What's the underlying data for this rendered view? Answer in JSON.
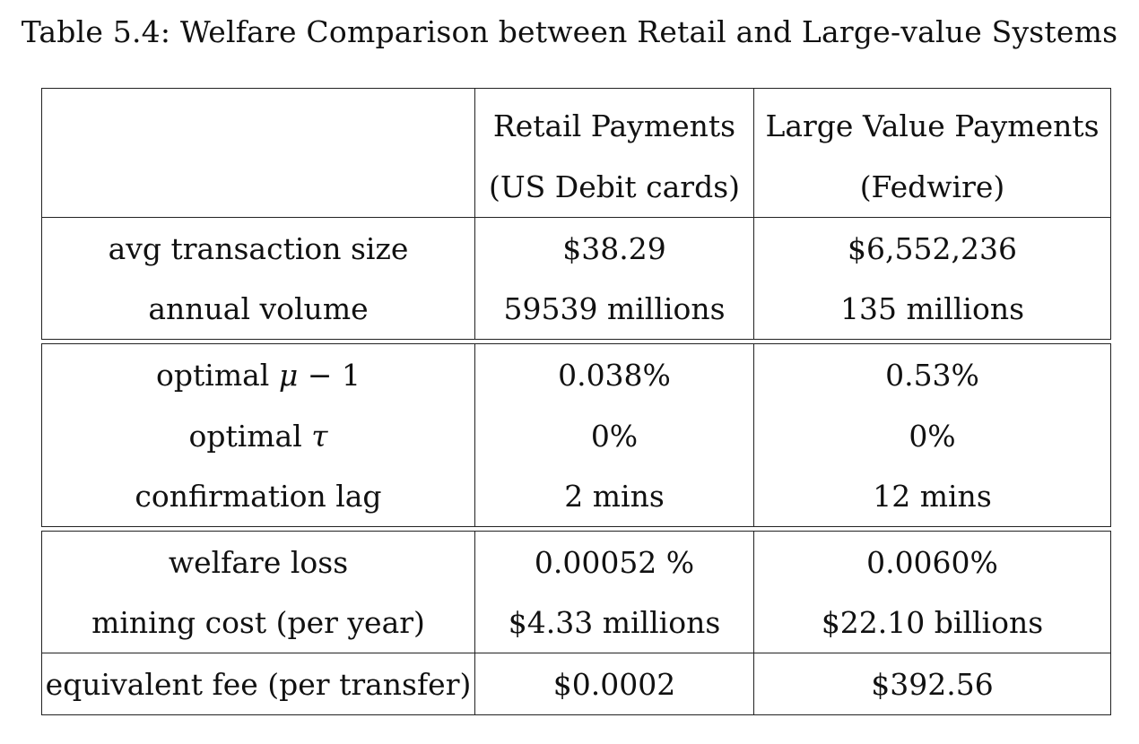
{
  "caption": "Table 5.4: Welfare Comparison between Retail and Large-value Systems",
  "header": {
    "corner": "",
    "retail_line1": "Retail Payments",
    "retail_line2": "(US Debit cards)",
    "large_line1": "Large Value Payments",
    "large_line2": "(Fedwire)"
  },
  "rows": {
    "avg_size": {
      "label": "avg transaction size",
      "retail": "$38.29",
      "large": "$6,552,236"
    },
    "volume": {
      "label": "annual volume",
      "retail": "59539 millions",
      "large": "135 millions"
    },
    "mu": {
      "label_prefix": "optimal ",
      "label_symbol": "μ",
      "label_suffix": " − 1",
      "retail": "0.038%",
      "large": "0.53%"
    },
    "tau": {
      "label_prefix": "optimal ",
      "label_symbol": "τ",
      "retail": "0%",
      "large": "0%"
    },
    "lag": {
      "label": "confirmation lag",
      "retail": "2 mins",
      "large": "12 mins"
    },
    "loss": {
      "label": "welfare loss",
      "retail": "0.00052 %",
      "large": "0.0060%"
    },
    "mining": {
      "label": "mining cost (per year)",
      "retail": "$4.33 millions",
      "large": "$22.10 billions"
    },
    "fee": {
      "label": "equivalent fee (per transfer)",
      "retail": "$0.0002",
      "large": "$392.56"
    }
  }
}
